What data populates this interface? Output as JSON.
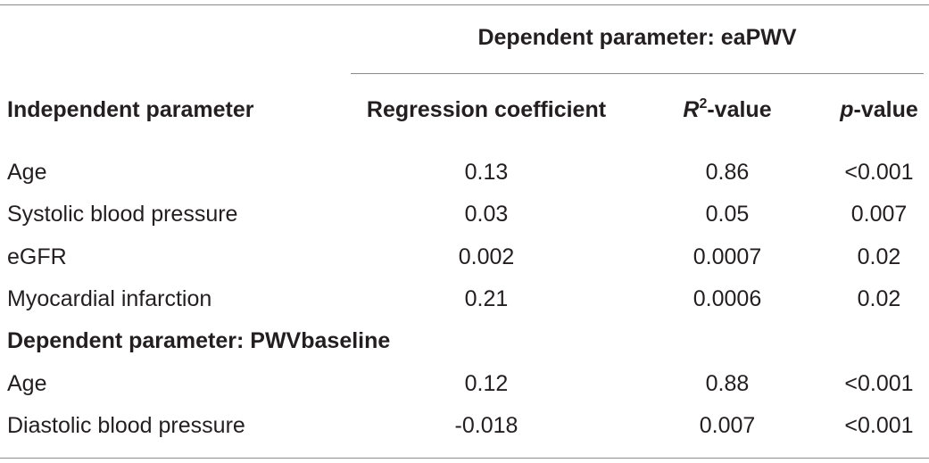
{
  "table": {
    "group_header": "Dependent parameter: eaPWV",
    "columns": [
      {
        "text": "Independent parameter"
      },
      {
        "text": "Regression coefficient"
      },
      {
        "italic": "R",
        "sup": "2",
        "rest": "-value"
      },
      {
        "italic": "p",
        "rest": "-value"
      }
    ],
    "sections": [
      {
        "rows": [
          [
            "Age",
            "0.13",
            "0.86",
            "<0.001"
          ],
          [
            "Systolic blood pressure",
            "0.03",
            "0.05",
            "0.007"
          ],
          [
            "eGFR",
            "0.002",
            "0.0007",
            "0.02"
          ],
          [
            "Myocardial infarction",
            "0.21",
            "0.0006",
            "0.02"
          ]
        ]
      },
      {
        "title": "Dependent parameter: PWVbaseline",
        "rows": [
          [
            "Age",
            "0.12",
            "0.88",
            "<0.001"
          ],
          [
            "Diastolic blood pressure",
            "-0.018",
            "0.007",
            "<0.001"
          ]
        ]
      }
    ]
  }
}
